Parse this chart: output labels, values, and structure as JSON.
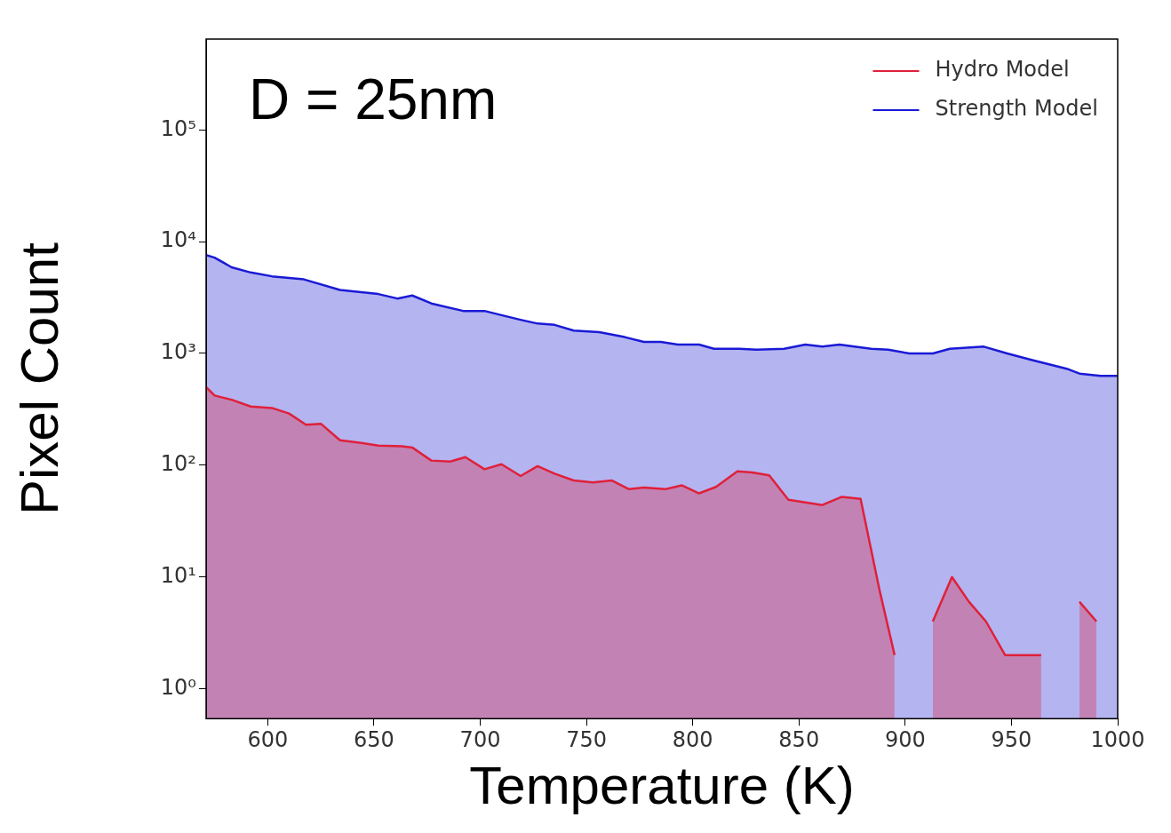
{
  "chart_data": {
    "type": "area",
    "xlabel": "Temperature (K)",
    "ylabel": "Pixel Count",
    "annotations": [
      "D = 25nm"
    ],
    "log": "y",
    "legend": "top right",
    "grid": false,
    "xlim": [
      571,
      1000
    ],
    "xticks": [
      600,
      650,
      700,
      750,
      800,
      850,
      900,
      950,
      1000
    ],
    "ylim": [
      0.54,
      650000
    ],
    "yticks": [
      {
        "value": 1,
        "label": "10⁰"
      },
      {
        "value": 10,
        "label": "10¹"
      },
      {
        "value": 100,
        "label": "10²"
      },
      {
        "value": 1000,
        "label": "10³"
      },
      {
        "value": 10000,
        "label": "10⁴"
      },
      {
        "value": 100000,
        "label": "10⁵"
      }
    ],
    "series": [
      {
        "name": "Hydro Model",
        "color": "#e0203a",
        "x": [
          571,
          575,
          583,
          592,
          602,
          610,
          618,
          625,
          634,
          644,
          652,
          663,
          668,
          677,
          686,
          693,
          702,
          710,
          719,
          727,
          735,
          744,
          753,
          762,
          770,
          777,
          787,
          795,
          803,
          811,
          821,
          828,
          836,
          845,
          861,
          870,
          879,
          888,
          895,
          904,
          913,
          922,
          930,
          938,
          947,
          955,
          964,
          973,
          982,
          990
        ],
        "values": [
          500,
          420,
          385,
          335,
          325,
          290,
          230,
          235,
          167,
          158,
          150,
          148,
          144,
          110,
          108,
          118,
          92,
          102,
          80,
          98,
          84,
          73,
          70,
          73,
          61,
          63,
          61,
          66,
          56,
          64,
          88,
          86,
          81,
          49,
          44,
          52,
          50,
          7.5,
          2,
          null,
          4,
          10,
          6,
          4,
          2,
          2,
          2,
          null,
          6,
          4
        ]
      },
      {
        "name": "Strength Model",
        "color": "#1a1ad6",
        "x": [
          571,
          575,
          583,
          592,
          602,
          617,
          634,
          652,
          661,
          668,
          677,
          692,
          702,
          710,
          719,
          727,
          735,
          744,
          756,
          768,
          777,
          785,
          793,
          803,
          810,
          822,
          830,
          843,
          853,
          861,
          869,
          884,
          892,
          902,
          913,
          921,
          937,
          948,
          959,
          976,
          982,
          992,
          1000
        ],
        "values": [
          7600,
          7200,
          5900,
          5300,
          4900,
          4600,
          3700,
          3400,
          3100,
          3300,
          2800,
          2400,
          2400,
          2200,
          2000,
          1850,
          1800,
          1600,
          1550,
          1400,
          1270,
          1270,
          1200,
          1200,
          1100,
          1100,
          1080,
          1100,
          1200,
          1150,
          1200,
          1100,
          1080,
          1000,
          1000,
          1100,
          1150,
          1000,
          880,
          730,
          660,
          630,
          630
        ]
      }
    ]
  }
}
